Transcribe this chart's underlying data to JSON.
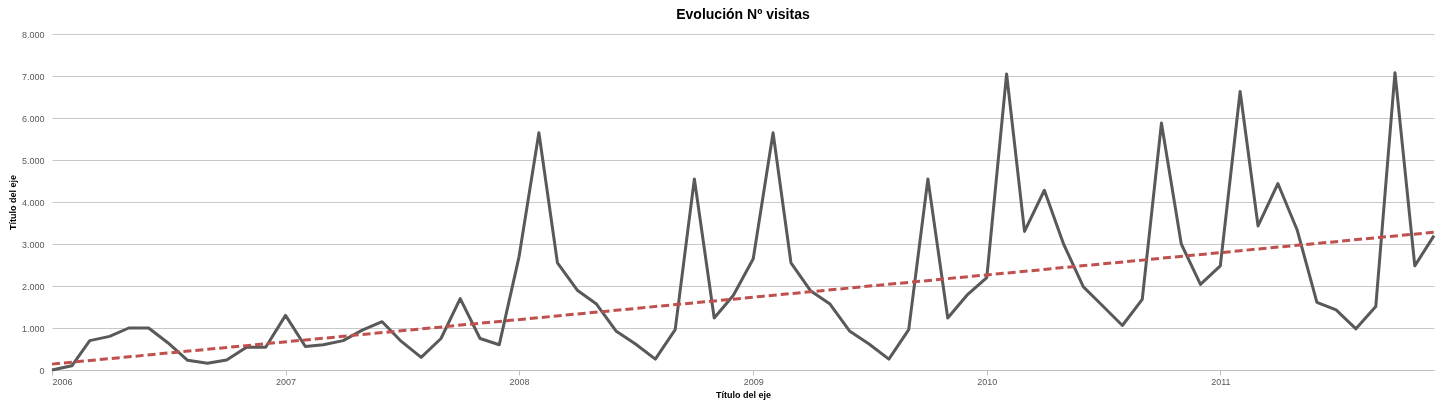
{
  "chart_data": {
    "type": "line",
    "title": "Evolución Nº visitas",
    "xlabel": "Título del eje",
    "ylabel": "Título del eje",
    "x": [
      "2006-01",
      "2006-02",
      "2006-03",
      "2006-04",
      "2006-05",
      "2006-06",
      "2006-07",
      "2006-08",
      "2006-09",
      "2006-10",
      "2006-11",
      "2006-12",
      "2007-01",
      "2007-02",
      "2007-03",
      "2007-04",
      "2007-05",
      "2007-06",
      "2007-07",
      "2007-08",
      "2007-09",
      "2007-10",
      "2007-11",
      "2007-12",
      "2008-01",
      "2008-02",
      "2008-03",
      "2008-04",
      "2008-05",
      "2008-06",
      "2008-07",
      "2008-08",
      "2008-09",
      "2008-10",
      "2008-11",
      "2008-12",
      "2009-01",
      "2009-02",
      "2009-03",
      "2009-04",
      "2009-05",
      "2009-06",
      "2009-07",
      "2009-08",
      "2009-09",
      "2009-10",
      "2009-11",
      "2009-12",
      "2010-01",
      "2010-02",
      "2010-03",
      "2010-04",
      "2010-05",
      "2010-06",
      "2010-07",
      "2010-08",
      "2010-09",
      "2010-10",
      "2010-11",
      "2010-12",
      "2011-01",
      "2011-02",
      "2011-03",
      "2011-04",
      "2011-05",
      "2011-06",
      "2011-07",
      "2011-08",
      "2011-09",
      "2011-10",
      "2011-11",
      "2011-12"
    ],
    "series": [
      {
        "color": "#595959",
        "values": [
          0,
          100,
          700,
          800,
          1000,
          1000,
          650,
          230,
          160,
          240,
          540,
          540,
          1300,
          560,
          600,
          700,
          950,
          1150,
          680,
          300,
          750,
          1700,
          750,
          600,
          2700,
          5650,
          2550,
          1900,
          1570,
          920,
          620,
          260,
          960,
          4550,
          1240,
          1780,
          2650,
          5650,
          2550,
          1880,
          1570,
          920,
          620,
          260,
          960,
          4550,
          1240,
          1780,
          2200,
          7050,
          3300,
          4280,
          3000,
          1980,
          1530,
          1060,
          1680,
          5880,
          3000,
          2040,
          2480,
          6630,
          3430,
          4440,
          3340,
          1610,
          1430,
          980,
          1510,
          7080,
          2480,
          3200
        ]
      },
      {
        "type": "line",
        "color": "#c0504d",
        "line_style": "dashed",
        "x": [
          "2006-01",
          "2011-12"
        ],
        "values": [
          140,
          3280
        ]
      }
    ],
    "xlim": [
      "2006-01",
      "2011-12"
    ],
    "xticks": [
      {
        "value": "2006-01",
        "label": "2006"
      },
      {
        "value": "2007-01",
        "label": "2007"
      },
      {
        "value": "2008-01",
        "label": "2008"
      },
      {
        "value": "2009-01",
        "label": "2009"
      },
      {
        "value": "2010-01",
        "label": "2010"
      },
      {
        "value": "2011-01",
        "label": "2011"
      }
    ],
    "ylim": [
      0,
      8000
    ],
    "yticks": [
      0,
      {
        "value": 1000,
        "label": "1.000"
      },
      {
        "value": 2000,
        "label": "2.000"
      },
      {
        "value": 3000,
        "label": "3.000"
      },
      {
        "value": 4000,
        "label": "4.000"
      },
      {
        "value": 5000,
        "label": "5.000"
      },
      {
        "value": 6000,
        "label": "6.000"
      },
      {
        "value": 7000,
        "label": "7.000"
      },
      {
        "value": 8000,
        "label": "8.000"
      }
    ],
    "grid": "y",
    "line_style": "solid"
  }
}
